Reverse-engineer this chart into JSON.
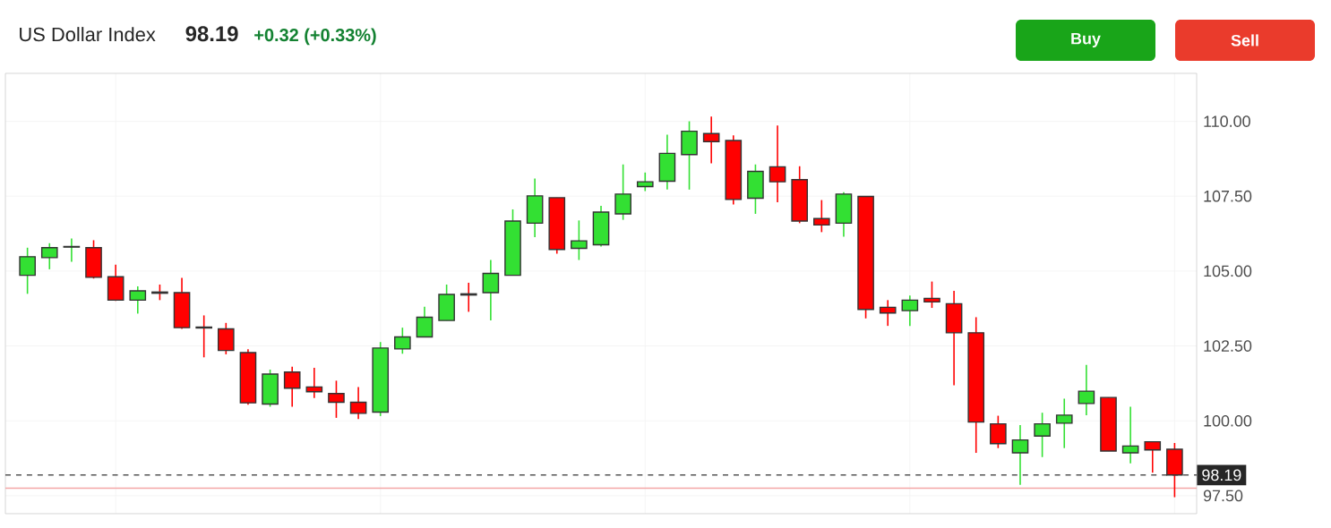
{
  "chart_data": {
    "type": "candlestick",
    "title": "US Dollar Index",
    "subtitle": "98.19",
    "annotations": [
      "+0.32 (+0.33%)",
      "Buy",
      "Sell"
    ],
    "categories": [
      null,
      null,
      null,
      null,
      null,
      null,
      null,
      null,
      null,
      null,
      null,
      null,
      null,
      null,
      null,
      null,
      null,
      null,
      null,
      null,
      null,
      null,
      null,
      null,
      null,
      null,
      null,
      null,
      null,
      null,
      null,
      null,
      null,
      null,
      null,
      null,
      null,
      null,
      null,
      null,
      null,
      null,
      null,
      null,
      null,
      null,
      null,
      null,
      null,
      null,
      null,
      null,
      null
    ],
    "ohlc": [
      [
        104.86,
        105.78,
        104.24,
        105.48
      ],
      [
        105.45,
        105.93,
        105.06,
        105.78
      ],
      [
        105.8,
        106.09,
        105.31,
        105.82
      ],
      [
        105.78,
        106.03,
        104.75,
        104.79
      ],
      [
        104.81,
        105.21,
        104.0,
        104.03
      ],
      [
        104.03,
        104.49,
        103.58,
        104.34
      ],
      [
        104.3,
        104.55,
        104.03,
        104.26
      ],
      [
        104.28,
        104.77,
        103.07,
        103.11
      ],
      [
        103.13,
        103.52,
        102.12,
        103.1
      ],
      [
        103.07,
        103.27,
        102.22,
        102.35
      ],
      [
        102.28,
        102.39,
        100.54,
        100.6
      ],
      [
        100.56,
        101.71,
        100.47,
        101.56
      ],
      [
        101.63,
        101.81,
        100.47,
        101.09
      ],
      [
        101.13,
        101.77,
        100.76,
        100.97
      ],
      [
        100.91,
        101.34,
        100.1,
        100.62
      ],
      [
        100.62,
        101.13,
        100.06,
        100.25
      ],
      [
        100.29,
        102.63,
        100.16,
        102.43
      ],
      [
        102.4,
        103.11,
        102.24,
        102.8
      ],
      [
        102.8,
        103.81,
        102.8,
        103.46
      ],
      [
        103.35,
        104.55,
        103.35,
        104.22
      ],
      [
        104.24,
        104.61,
        103.64,
        104.2
      ],
      [
        104.28,
        105.37,
        103.35,
        104.92
      ],
      [
        104.86,
        107.06,
        104.86,
        106.67
      ],
      [
        106.6,
        108.09,
        106.13,
        107.51
      ],
      [
        107.45,
        107.45,
        105.58,
        105.72
      ],
      [
        105.76,
        106.69,
        105.37,
        106.01
      ],
      [
        105.88,
        107.18,
        105.82,
        106.97
      ],
      [
        106.91,
        108.56,
        106.71,
        107.57
      ],
      [
        107.82,
        108.29,
        107.67,
        107.98
      ],
      [
        108.0,
        109.55,
        107.72,
        108.93
      ],
      [
        108.89,
        110.0,
        107.72,
        109.67
      ],
      [
        109.59,
        110.16,
        108.6,
        109.32
      ],
      [
        109.36,
        109.53,
        107.22,
        107.39
      ],
      [
        107.43,
        108.56,
        106.91,
        108.33
      ],
      [
        108.48,
        109.86,
        107.3,
        107.98
      ],
      [
        108.05,
        108.5,
        106.6,
        106.67
      ],
      [
        106.75,
        107.37,
        106.3,
        106.54
      ],
      [
        106.6,
        107.63,
        106.15,
        107.57
      ],
      [
        107.49,
        107.49,
        103.42,
        103.72
      ],
      [
        103.79,
        104.03,
        103.17,
        103.6
      ],
      [
        103.68,
        104.18,
        103.17,
        104.03
      ],
      [
        104.09,
        104.65,
        103.77,
        103.97
      ],
      [
        103.91,
        104.34,
        101.19,
        102.94
      ],
      [
        102.94,
        103.46,
        98.93,
        99.96
      ],
      [
        99.9,
        100.17,
        99.09,
        99.24
      ],
      [
        98.93,
        99.86,
        97.86,
        99.36
      ],
      [
        99.49,
        100.27,
        98.79,
        99.9
      ],
      [
        99.92,
        100.74,
        99.09,
        100.19
      ],
      [
        100.58,
        101.87,
        100.19,
        100.99
      ],
      [
        100.78,
        100.78,
        98.99,
        98.99
      ],
      [
        98.93,
        100.47,
        98.58,
        99.16
      ],
      [
        99.3,
        99.3,
        98.27,
        99.03
      ],
      [
        99.05,
        99.26,
        97.45,
        98.19
      ]
    ],
    "ylim": [
      96.9,
      111.6
    ],
    "yticks": [
      {
        "value": 97.5,
        "label": "97.50"
      },
      {
        "value": 100,
        "label": "100.00"
      },
      {
        "value": 102.5,
        "label": "102.50"
      },
      {
        "value": 105,
        "label": "105.00"
      },
      {
        "value": 107.5,
        "label": "107.50"
      },
      {
        "value": 110,
        "label": "110.00"
      }
    ],
    "ref_lines": [
      {
        "axis": "y",
        "value": 98.19,
        "label": "98.19",
        "color": "#555555",
        "line_style": "dashed"
      },
      {
        "axis": "y",
        "value": 97.75,
        "color": "#f4a6a6",
        "line_style": "solid"
      }
    ],
    "grid": true
  }
}
